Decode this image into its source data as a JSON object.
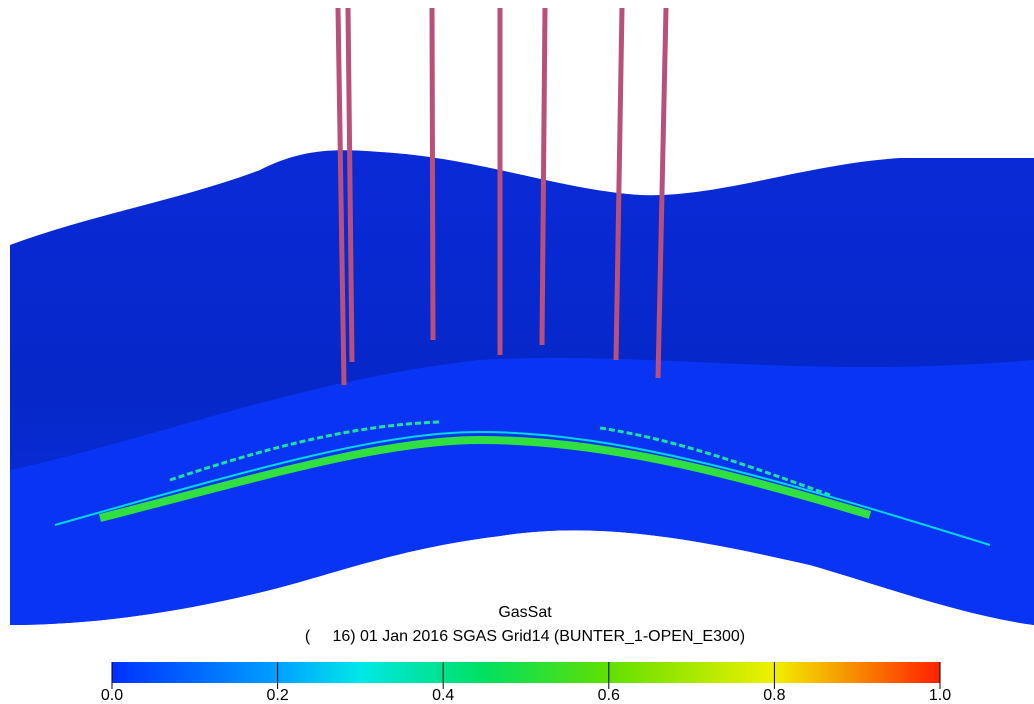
{
  "colorbar": {
    "title": "GasSat",
    "subtitle": "(     16) 01 Jan 2016 SGAS Grid14 (BUNTER_1-OPEN_E300)",
    "ticks": [
      {
        "value": 0,
        "label": "0.0"
      },
      {
        "value": 0.2,
        "label": "0.2"
      },
      {
        "value": 0.4,
        "label": "0.4"
      },
      {
        "value": 0.6,
        "label": "0.6"
      },
      {
        "value": 0.8,
        "label": "0.8"
      },
      {
        "value": 1,
        "label": "1.0"
      }
    ]
  }
}
